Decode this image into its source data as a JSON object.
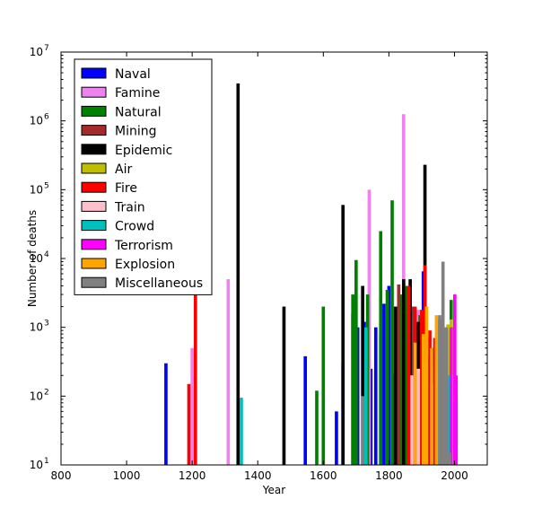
{
  "chart_data": {
    "type": "bar",
    "xlabel": "Year",
    "ylabel": "Number of deaths",
    "xlim": [
      800,
      2100
    ],
    "ylim": [
      10,
      10000000
    ],
    "yscale": "log",
    "x_ticks": [
      800,
      1000,
      1200,
      1400,
      1600,
      1800,
      2000
    ],
    "y_ticks": [
      {
        "value": 10,
        "base": "10",
        "exp": "1"
      },
      {
        "value": 100,
        "base": "10",
        "exp": "2"
      },
      {
        "value": 1000,
        "base": "10",
        "exp": "3"
      },
      {
        "value": 10000,
        "base": "10",
        "exp": "4"
      },
      {
        "value": 100000,
        "base": "10",
        "exp": "5"
      },
      {
        "value": 1000000,
        "base": "10",
        "exp": "6"
      },
      {
        "value": 10000000,
        "base": "10",
        "exp": "7"
      }
    ],
    "legend_position": "top-left",
    "series": [
      {
        "name": "Naval",
        "color": "#0000ff",
        "points": [
          [
            1120,
            300
          ],
          [
            1545,
            380
          ],
          [
            1640,
            60
          ],
          [
            1660,
            300
          ],
          [
            1690,
            1600
          ],
          [
            1705,
            1000
          ],
          [
            1725,
            1200
          ],
          [
            1745,
            250
          ],
          [
            1760,
            1000
          ],
          [
            1775,
            800
          ],
          [
            1785,
            2200
          ],
          [
            1800,
            4000
          ],
          [
            1815,
            210
          ],
          [
            1830,
            3000
          ],
          [
            1845,
            3500
          ],
          [
            1860,
            1000
          ],
          [
            1870,
            1700
          ],
          [
            1885,
            1100
          ],
          [
            1895,
            1500
          ],
          [
            1905,
            6500
          ],
          [
            1915,
            400
          ],
          [
            1925,
            160
          ],
          [
            1935,
            500
          ],
          [
            1945,
            200
          ],
          [
            1960,
            500
          ],
          [
            1975,
            280
          ]
        ]
      },
      {
        "name": "Famine",
        "color": "#ee82ee",
        "points": [
          [
            1200,
            500
          ],
          [
            1310,
            5000
          ],
          [
            1740,
            100000
          ],
          [
            1845,
            1250000
          ],
          [
            1850,
            2500
          ],
          [
            1890,
            1800
          ]
        ]
      },
      {
        "name": "Natural",
        "color": "#008000",
        "points": [
          [
            1580,
            120
          ],
          [
            1600,
            2000
          ],
          [
            1690,
            3000
          ],
          [
            1700,
            9500
          ],
          [
            1735,
            3000
          ],
          [
            1775,
            25000
          ],
          [
            1795,
            3500
          ],
          [
            1810,
            70000
          ],
          [
            1825,
            2000
          ],
          [
            1835,
            3000
          ],
          [
            1855,
            4000
          ],
          [
            1870,
            1800
          ],
          [
            1895,
            1500
          ],
          [
            1920,
            350
          ],
          [
            1950,
            400
          ],
          [
            1990,
            2500
          ]
        ]
      },
      {
        "name": "Mining",
        "color": "#a52a2a",
        "points": [
          [
            1830,
            4200
          ],
          [
            1845,
            2800
          ],
          [
            1875,
            2000
          ],
          [
            1900,
            1700
          ],
          [
            1915,
            700
          ],
          [
            1930,
            250
          ],
          [
            1945,
            600
          ],
          [
            1960,
            380
          ]
        ]
      },
      {
        "name": "Epidemic",
        "color": "#000000",
        "points": [
          [
            1340,
            3500000
          ],
          [
            1480,
            2000
          ],
          [
            1660,
            60000
          ],
          [
            1720,
            4000
          ],
          [
            1820,
            2000
          ],
          [
            1845,
            5000
          ],
          [
            1865,
            5000
          ],
          [
            1890,
            1200
          ],
          [
            1910,
            230000
          ],
          [
            1980,
            280
          ]
        ]
      },
      {
        "name": "Air",
        "color": "#bfbf00",
        "points": [
          [
            1950,
            1000
          ],
          [
            1960,
            1200
          ],
          [
            1970,
            900
          ],
          [
            1980,
            1100
          ],
          [
            1990,
            1300
          ],
          [
            2000,
            1000
          ]
        ]
      },
      {
        "name": "Fire",
        "color": "#ff0000",
        "points": [
          [
            1190,
            150
          ],
          [
            1210,
            3000
          ],
          [
            1860,
            4000
          ],
          [
            1880,
            2000
          ],
          [
            1900,
            1800
          ],
          [
            1910,
            8000
          ],
          [
            1925,
            900
          ],
          [
            1940,
            700
          ],
          [
            1955,
            1300
          ]
        ]
      },
      {
        "name": "Train",
        "color": "#ffc0cb",
        "points": [
          [
            1870,
            200
          ],
          [
            1890,
            250
          ],
          [
            1910,
            300
          ],
          [
            1930,
            150
          ],
          [
            1950,
            400
          ],
          [
            1970,
            250
          ],
          [
            1995,
            200
          ]
        ]
      },
      {
        "name": "Crowd",
        "color": "#00bfbf",
        "points": [
          [
            1350,
            95
          ],
          [
            1730,
            1000
          ],
          [
            1950,
            800
          ],
          [
            1965,
            600
          ],
          [
            1980,
            200
          ],
          [
            2005,
            100
          ]
        ]
      },
      {
        "name": "Terrorism",
        "color": "#ff00ff",
        "points": [
          [
            1975,
            900
          ],
          [
            1990,
            1000
          ],
          [
            2001,
            3000
          ],
          [
            2005,
            200
          ]
        ]
      },
      {
        "name": "Explosion",
        "color": "#ffa500",
        "points": [
          [
            1880,
            600
          ],
          [
            1905,
            800
          ],
          [
            1915,
            2000
          ],
          [
            1930,
            500
          ],
          [
            1945,
            1500
          ],
          [
            1970,
            900
          ]
        ]
      },
      {
        "name": "Miscellaneous",
        "color": "#808080",
        "points": [
          [
            1720,
            100
          ],
          [
            1955,
            1500
          ],
          [
            1965,
            9000
          ],
          [
            1975,
            1000
          ],
          [
            1985,
            15
          ]
        ]
      }
    ]
  }
}
